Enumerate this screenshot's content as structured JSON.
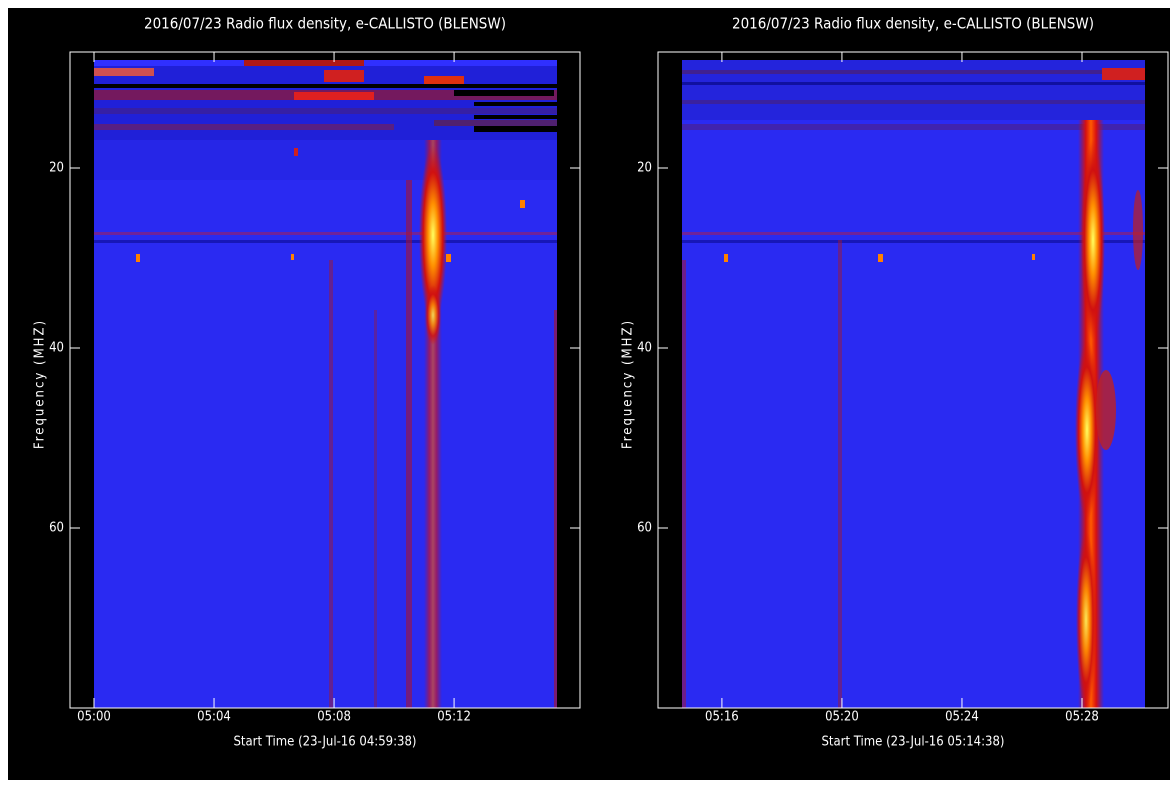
{
  "chart_data": [
    {
      "type": "spectrogram",
      "title": "2016/07/23  Radio flux density, e-CALLISTO (BLENSW)",
      "x_label": "Start Time (23-Jul-16 04:59:38)",
      "y_label": "Frequency (MHZ)",
      "xlim": [
        0,
        15.43
      ],
      "xticks": [
        {
          "value": 0,
          "label": "05:00"
        },
        {
          "value": 4,
          "label": "05:04"
        },
        {
          "value": 8,
          "label": "05:08"
        },
        {
          "value": 12,
          "label": "05:12"
        }
      ],
      "ylim": [
        80,
        8
      ],
      "yticks": [
        20,
        40,
        60
      ]
    },
    {
      "type": "spectrogram",
      "title": "2016/07/23  Radio flux density, e-CALLISTO (BLENSW)",
      "x_label": "Start Time (23-Jul-16 05:14:38)",
      "y_label": "Frequency (MHZ)",
      "xlim": [
        14.67,
        30.1
      ],
      "xticks": [
        {
          "value": 16,
          "label": "05:16"
        },
        {
          "value": 20,
          "label": "05:20"
        },
        {
          "value": 24,
          "label": "05:24"
        },
        {
          "value": 28,
          "label": "05:28"
        }
      ],
      "ylim": [
        80,
        8
      ],
      "yticks": [
        20,
        40,
        60
      ]
    }
  ]
}
